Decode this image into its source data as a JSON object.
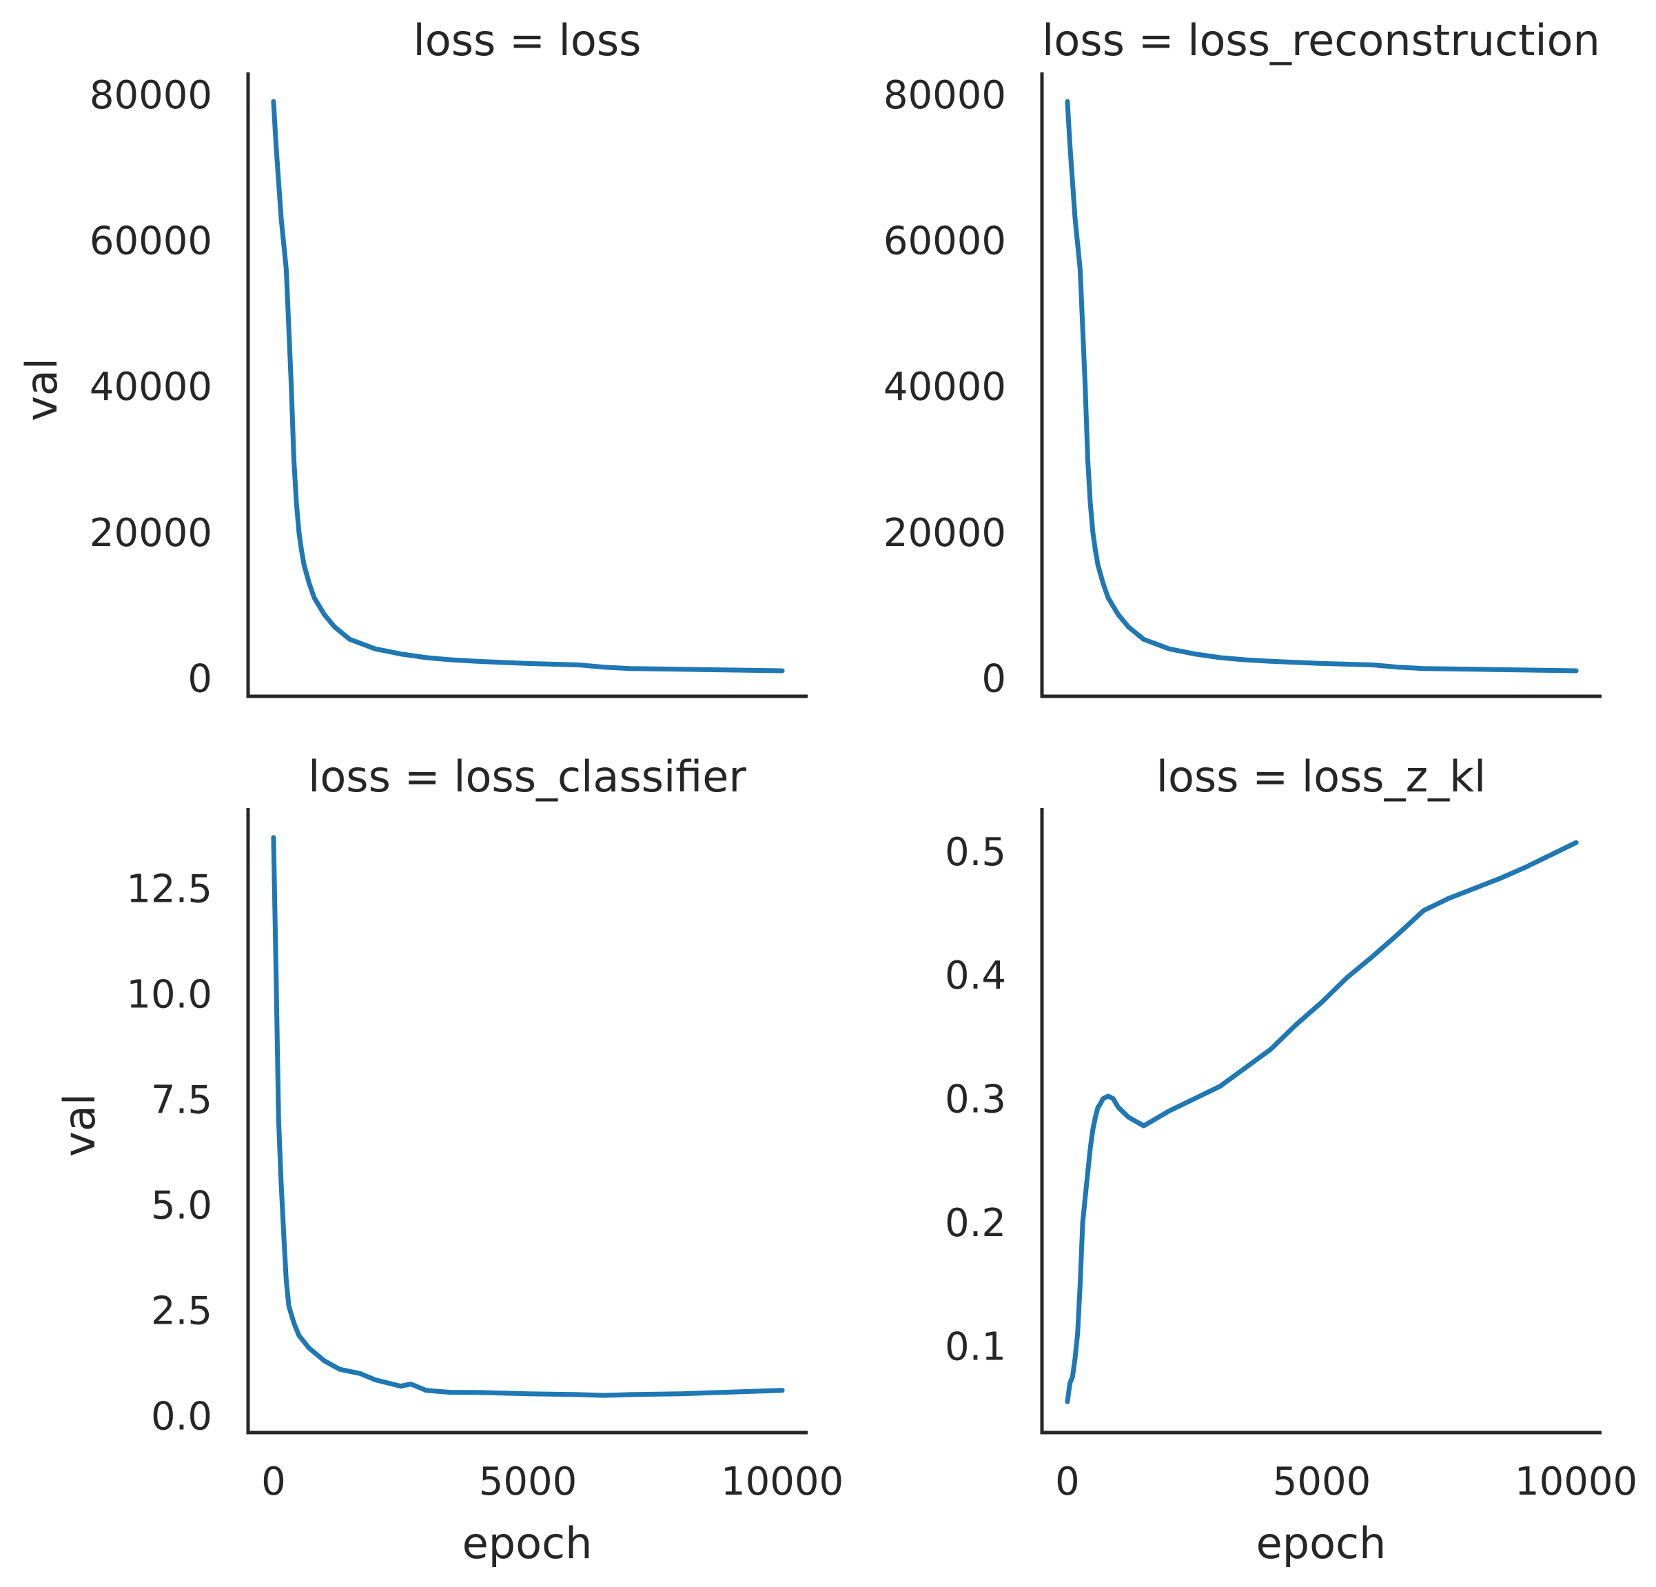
{
  "figure": {
    "line_color": "#1f77b4",
    "axis_color": "#262626",
    "background": "#ffffff"
  },
  "chart_data": [
    {
      "type": "line",
      "title": "loss = loss",
      "xlabel": "",
      "ylabel": "val",
      "xlim": [
        -500,
        10500
      ],
      "ylim": [
        -2500,
        83000
      ],
      "xticks": [],
      "xtick_labels": [],
      "yticks": [
        0,
        20000,
        40000,
        60000,
        80000
      ],
      "ytick_labels": [
        "0",
        "20000",
        "40000",
        "60000",
        "80000"
      ],
      "grid": false,
      "series": [
        {
          "x": [
            0,
            50,
            150,
            250,
            350,
            400,
            450,
            500,
            550,
            600,
            700,
            800,
            1000,
            1200,
            1500,
            2000,
            2500,
            3000,
            3500,
            4000,
            5000,
            6000,
            6500,
            7000,
            8000,
            9000,
            10000
          ],
          "y": [
            79000,
            73000,
            63000,
            56000,
            40000,
            30000,
            24000,
            20000,
            17500,
            15500,
            13000,
            11000,
            8700,
            7000,
            5300,
            4000,
            3300,
            2800,
            2500,
            2300,
            2000,
            1800,
            1500,
            1300,
            1200,
            1100,
            1000
          ]
        }
      ]
    },
    {
      "type": "line",
      "title": "loss = loss_reconstruction",
      "xlabel": "",
      "ylabel": "",
      "xlim": [
        -500,
        10500
      ],
      "ylim": [
        -2500,
        83000
      ],
      "xticks": [],
      "xtick_labels": [],
      "yticks": [
        0,
        20000,
        40000,
        60000,
        80000
      ],
      "ytick_labels": [
        "0",
        "20000",
        "40000",
        "60000",
        "80000"
      ],
      "grid": false,
      "series": [
        {
          "x": [
            0,
            50,
            150,
            250,
            350,
            400,
            450,
            500,
            550,
            600,
            700,
            800,
            1000,
            1200,
            1500,
            2000,
            2500,
            3000,
            3500,
            4000,
            5000,
            6000,
            6500,
            7000,
            8000,
            9000,
            10000
          ],
          "y": [
            79000,
            73000,
            63000,
            56000,
            40000,
            30000,
            24000,
            20000,
            17500,
            15500,
            13000,
            11000,
            8700,
            7000,
            5300,
            4000,
            3300,
            2800,
            2500,
            2300,
            2000,
            1800,
            1500,
            1300,
            1200,
            1100,
            1000
          ]
        }
      ]
    },
    {
      "type": "line",
      "title": "loss = loss_classifier",
      "xlabel": "epoch",
      "ylabel": "val",
      "xlim": [
        -500,
        10500
      ],
      "ylim": [
        -0.4,
        14.4
      ],
      "xticks": [
        0,
        5000,
        10000
      ],
      "xtick_labels": [
        "0",
        "5000",
        "10000"
      ],
      "yticks": [
        0.0,
        2.5,
        5.0,
        7.5,
        10.0,
        12.5
      ],
      "ytick_labels": [
        "0.0",
        "2.5",
        "5.0",
        "7.5",
        "10.0",
        "12.5"
      ],
      "grid": false,
      "series": [
        {
          "x": [
            0,
            50,
            100,
            150,
            200,
            250,
            300,
            400,
            500,
            700,
            1000,
            1300,
            1700,
            2000,
            2500,
            2700,
            3000,
            3500,
            4000,
            5000,
            6000,
            6500,
            7000,
            8000,
            9000,
            10000
          ],
          "y": [
            13.7,
            10.5,
            7.0,
            5.5,
            4.3,
            3.2,
            2.6,
            2.2,
            1.9,
            1.6,
            1.3,
            1.1,
            1.0,
            0.85,
            0.7,
            0.75,
            0.6,
            0.55,
            0.55,
            0.52,
            0.5,
            0.48,
            0.5,
            0.52,
            0.56,
            0.6
          ]
        }
      ]
    },
    {
      "type": "line",
      "title": "loss = loss_z_kl",
      "xlabel": "epoch",
      "ylabel": "",
      "xlim": [
        -500,
        10500
      ],
      "ylim": [
        0.03,
        0.535
      ],
      "xticks": [
        0,
        5000,
        10000
      ],
      "xtick_labels": [
        "0",
        "5000",
        "10000"
      ],
      "yticks": [
        0.1,
        0.2,
        0.3,
        0.4,
        0.5
      ],
      "ytick_labels": [
        "0.1",
        "0.2",
        "0.3",
        "0.4",
        "0.5"
      ],
      "grid": false,
      "series": [
        {
          "x": [
            0,
            50,
            100,
            150,
            200,
            250,
            300,
            350,
            400,
            450,
            500,
            550,
            600,
            650,
            700,
            800,
            900,
            1000,
            1200,
            1500,
            2000,
            2500,
            3000,
            3500,
            4000,
            4500,
            5000,
            5500,
            6000,
            6500,
            7000,
            7500,
            8000,
            8500,
            9000,
            9500,
            10000
          ],
          "y": [
            0.055,
            0.07,
            0.075,
            0.09,
            0.11,
            0.15,
            0.2,
            0.22,
            0.24,
            0.26,
            0.275,
            0.285,
            0.293,
            0.296,
            0.3,
            0.302,
            0.3,
            0.293,
            0.285,
            0.278,
            0.29,
            0.3,
            0.31,
            0.325,
            0.34,
            0.36,
            0.378,
            0.398,
            0.415,
            0.433,
            0.452,
            0.462,
            0.47,
            0.478,
            0.487,
            0.497,
            0.507
          ]
        }
      ]
    }
  ]
}
